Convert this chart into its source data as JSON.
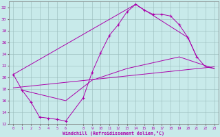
{
  "background_color": "#c8eaea",
  "grid_color": "#99bbbb",
  "line_color": "#aa00aa",
  "xlabel": "Windchill (Refroidissement éolien,°C)",
  "xlim": [
    -0.5,
    23.5
  ],
  "ylim": [
    12,
    33
  ],
  "xticks": [
    0,
    1,
    2,
    3,
    4,
    5,
    6,
    8,
    9,
    10,
    11,
    12,
    13,
    14,
    15,
    16,
    17,
    18,
    19,
    20,
    21,
    22,
    23
  ],
  "yticks": [
    12,
    14,
    16,
    18,
    20,
    22,
    24,
    26,
    28,
    30,
    32
  ],
  "curve1_x": [
    0,
    1,
    2,
    3,
    4,
    5,
    6,
    8,
    9,
    10,
    11,
    12,
    13,
    14,
    15,
    16,
    17,
    18,
    19,
    20,
    21
  ],
  "curve1_y": [
    20.5,
    17.8,
    15.8,
    13.2,
    13.0,
    12.8,
    12.5,
    16.5,
    20.8,
    24.2,
    27.2,
    29.0,
    31.2,
    32.5,
    31.5,
    30.8,
    30.8,
    30.5,
    29.0,
    26.8,
    23.5
  ],
  "curve2_x": [
    0,
    14,
    20,
    21,
    22,
    23
  ],
  "curve2_y": [
    20.5,
    32.5,
    26.8,
    23.5,
    21.8,
    21.5
  ],
  "curve3_x": [
    0,
    23
  ],
  "curve3_y": [
    18.2,
    21.8
  ],
  "curve4_x": [
    1,
    6,
    9,
    13,
    19,
    22,
    23
  ],
  "curve4_y": [
    17.8,
    16.0,
    19.5,
    21.5,
    23.5,
    22.0,
    21.5
  ]
}
